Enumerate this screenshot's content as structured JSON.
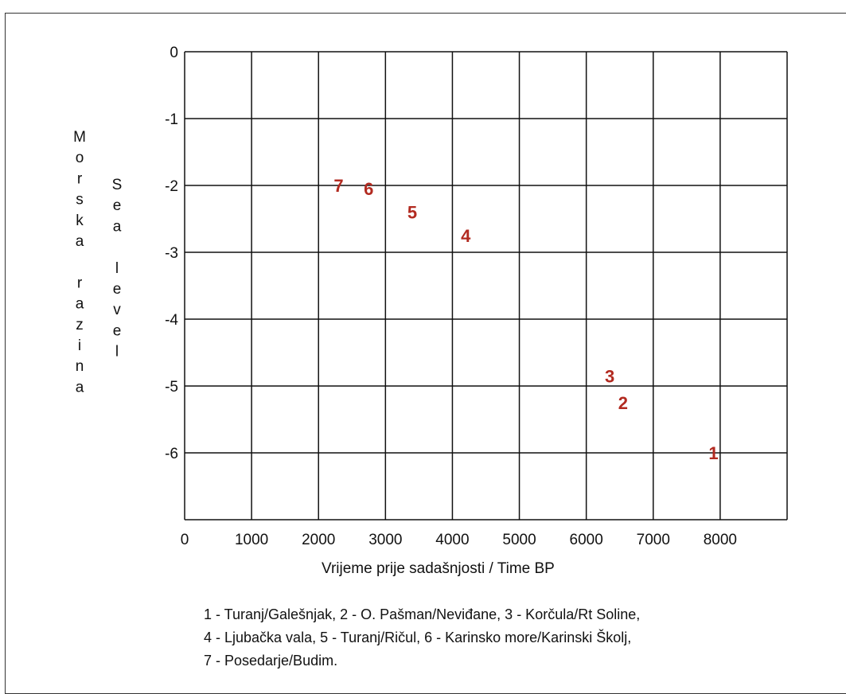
{
  "chart_data": {
    "type": "scatter",
    "xlabel": "Vrijeme prije sadašnjosti / Time BP",
    "ylabel_hr": "Morska razina",
    "ylabel_en": "Sea level",
    "xlim": [
      0,
      9000
    ],
    "ylim": [
      -7,
      0
    ],
    "x_ticks": [
      0,
      1000,
      2000,
      3000,
      4000,
      5000,
      6000,
      7000,
      8000
    ],
    "x_tick_labels": [
      "0",
      "1000",
      "2000",
      "3000",
      "4000",
      "5000",
      "6000",
      "7000",
      "8000"
    ],
    "y_ticks": [
      0,
      -1,
      -2,
      -3,
      -4,
      -5,
      -6
    ],
    "y_tick_labels": [
      "0",
      "-1",
      "-2",
      "-3",
      "-4",
      "-5",
      "-6"
    ],
    "grid": true,
    "points": [
      {
        "label": "1",
        "x": 7900,
        "y": -6.0
      },
      {
        "label": "2",
        "x": 6550,
        "y": -5.25
      },
      {
        "label": "3",
        "x": 6350,
        "y": -4.85
      },
      {
        "label": "4",
        "x": 4200,
        "y": -2.75
      },
      {
        "label": "5",
        "x": 3400,
        "y": -2.4
      },
      {
        "label": "6",
        "x": 2750,
        "y": -2.05
      },
      {
        "label": "7",
        "x": 2300,
        "y": -2.0
      }
    ],
    "marker_color": "#b22a20",
    "legend_lines": [
      "1 - Turanj/Galešnjak, 2 - O. Pašman/Neviđane, 3 - Korčula/Rt Soline,",
      "4 - Ljubačka vala, 5 - Turanj/Ričul, 6 - Karinsko more/Karinski Školj,",
      "7 - Posedarje/Budim."
    ]
  }
}
